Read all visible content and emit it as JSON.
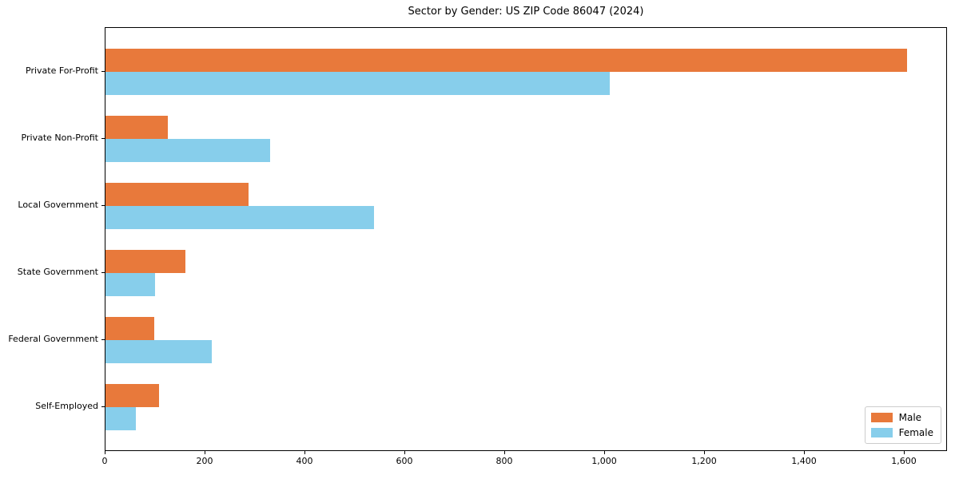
{
  "title": "Sector by Gender: US ZIP Code 86047 (2024)",
  "legend": {
    "position": "lower right",
    "items": [
      {
        "label": "Male",
        "color": "#e8793b"
      },
      {
        "label": "Female",
        "color": "#87ceeb"
      }
    ]
  },
  "chart_data": {
    "type": "bar",
    "orientation": "horizontal",
    "title": "Sector by Gender: US ZIP Code 86047 (2024)",
    "categories": [
      "Private For-Profit",
      "Private Non-Profit",
      "Local Government",
      "State Government",
      "Federal Government",
      "Self-Employed"
    ],
    "series": [
      {
        "name": "Male",
        "color": "#e8793b",
        "values": [
          1605,
          125,
          286,
          160,
          97,
          107
        ]
      },
      {
        "name": "Female",
        "color": "#87ceeb",
        "values": [
          1010,
          329,
          537,
          99,
          212,
          61
        ]
      }
    ],
    "xlabel": "",
    "ylabel": "",
    "xlim": [
      0,
      1686
    ],
    "xticks": [
      0,
      200,
      400,
      600,
      800,
      1000,
      1200,
      1400,
      1600
    ],
    "xtick_labels": [
      "0",
      "200",
      "400",
      "600",
      "800",
      "1,000",
      "1,200",
      "1,400",
      "1,600"
    ],
    "grid": false,
    "legend_position": "lower right"
  }
}
